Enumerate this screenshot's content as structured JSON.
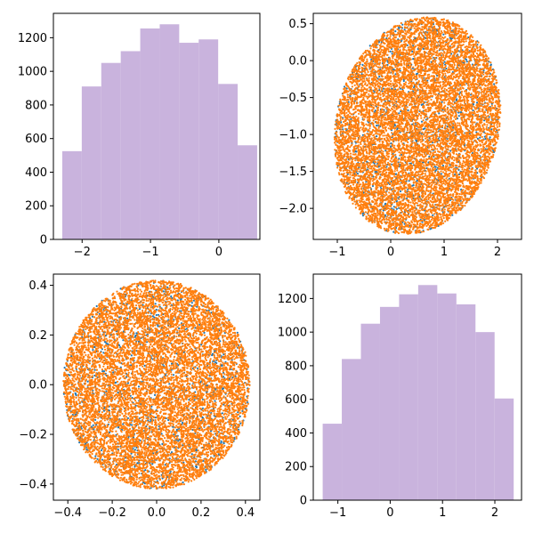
{
  "colors": {
    "histogram": "#c9b3dd",
    "scatter_blue": "#1f77b4",
    "scatter_orange": "#ff7f0e"
  },
  "chart_data": [
    {
      "id": "top-left",
      "type": "bar",
      "title": "",
      "xlabel": "",
      "ylabel": "",
      "xlim": [
        -2.42,
        0.6
      ],
      "ylim": [
        0,
        1345
      ],
      "xticks": [
        -2,
        -1,
        0
      ],
      "yticks": [
        0,
        200,
        400,
        600,
        800,
        1000,
        1200
      ],
      "bins": [
        {
          "x0": -2.29,
          "x1": -2.005,
          "value": 525
        },
        {
          "x0": -2.005,
          "x1": -1.72,
          "value": 910
        },
        {
          "x0": -1.72,
          "x1": -1.435,
          "value": 1050
        },
        {
          "x0": -1.435,
          "x1": -1.15,
          "value": 1120
        },
        {
          "x0": -1.15,
          "x1": -0.865,
          "value": 1255
        },
        {
          "x0": -0.865,
          "x1": -0.58,
          "value": 1280
        },
        {
          "x0": -0.58,
          "x1": -0.295,
          "value": 1170
        },
        {
          "x0": -0.295,
          "x1": -0.01,
          "value": 1190
        },
        {
          "x0": -0.01,
          "x1": 0.275,
          "value": 925
        },
        {
          "x0": 0.275,
          "x1": 0.56,
          "value": 560
        }
      ]
    },
    {
      "id": "top-right",
      "type": "scatter",
      "title": "",
      "xlabel": "",
      "ylabel": "",
      "xlim": [
        -1.45,
        2.45
      ],
      "ylim": [
        -2.42,
        0.64
      ],
      "xticks": [
        -1,
        0,
        1,
        2
      ],
      "yticks": [
        -2.0,
        -1.5,
        -1.0,
        -0.5,
        0.0,
        0.5
      ],
      "shape": "ellipse",
      "center": [
        0.5,
        -0.88
      ],
      "semi_axes": [
        1.62,
        1.4
      ],
      "rotation_deg": 33,
      "series": [
        {
          "color": "#1f77b4",
          "count": 1400
        },
        {
          "color": "#ff7f0e",
          "count": 10000
        }
      ]
    },
    {
      "id": "bottom-left",
      "type": "scatter",
      "title": "",
      "xlabel": "",
      "ylabel": "",
      "xlim": [
        -0.465,
        0.465
      ],
      "ylim": [
        -0.465,
        0.445
      ],
      "xticks": [
        -0.4,
        -0.2,
        0.0,
        0.2,
        0.4
      ],
      "yticks": [
        -0.4,
        -0.2,
        0.0,
        0.2,
        0.4
      ],
      "shape": "circle",
      "center": [
        0,
        0
      ],
      "radius": 0.42,
      "series": [
        {
          "color": "#1f77b4",
          "count": 1400
        },
        {
          "color": "#ff7f0e",
          "count": 10000
        }
      ]
    },
    {
      "id": "bottom-right",
      "type": "bar",
      "title": "",
      "xlabel": "",
      "ylabel": "",
      "xlim": [
        -1.47,
        2.51
      ],
      "ylim": [
        0,
        1345
      ],
      "xticks": [
        -1,
        0,
        1,
        2
      ],
      "yticks": [
        0,
        200,
        400,
        600,
        800,
        1000,
        1200
      ],
      "bins": [
        {
          "x0": -1.29,
          "x1": -0.925,
          "value": 455
        },
        {
          "x0": -0.925,
          "x1": -0.56,
          "value": 840
        },
        {
          "x0": -0.56,
          "x1": -0.195,
          "value": 1050
        },
        {
          "x0": -0.195,
          "x1": 0.17,
          "value": 1150
        },
        {
          "x0": 0.17,
          "x1": 0.535,
          "value": 1225
        },
        {
          "x0": 0.535,
          "x1": 0.9,
          "value": 1280
        },
        {
          "x0": 0.9,
          "x1": 1.265,
          "value": 1230
        },
        {
          "x0": 1.265,
          "x1": 1.63,
          "value": 1165
        },
        {
          "x0": 1.63,
          "x1": 1.995,
          "value": 1000
        },
        {
          "x0": 1.995,
          "x1": 2.36,
          "value": 605
        }
      ]
    }
  ]
}
